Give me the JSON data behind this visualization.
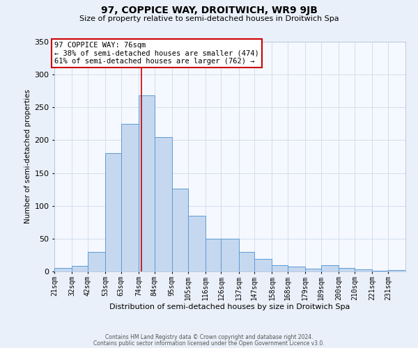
{
  "title": "97, COPPICE WAY, DROITWICH, WR9 9JB",
  "subtitle": "Size of property relative to semi-detached houses in Droitwich Spa",
  "xlabel": "Distribution of semi-detached houses by size in Droitwich Spa",
  "ylabel": "Number of semi-detached properties",
  "bin_labels": [
    "21sqm",
    "32sqm",
    "42sqm",
    "53sqm",
    "63sqm",
    "74sqm",
    "84sqm",
    "95sqm",
    "105sqm",
    "116sqm",
    "126sqm",
    "137sqm",
    "147sqm",
    "158sqm",
    "168sqm",
    "179sqm",
    "189sqm",
    "200sqm",
    "210sqm",
    "221sqm",
    "231sqm"
  ],
  "bin_values": [
    5,
    8,
    30,
    180,
    225,
    268,
    205,
    126,
    85,
    50,
    50,
    30,
    19,
    10,
    7,
    4,
    10,
    5,
    3,
    1,
    2
  ],
  "bar_color": "#c5d8f0",
  "bar_edge_color": "#5b9bd5",
  "property_line_x": 76,
  "bin_edges": [
    21,
    32,
    42,
    53,
    63,
    74,
    84,
    95,
    105,
    116,
    126,
    137,
    147,
    158,
    168,
    179,
    189,
    200,
    210,
    221,
    231,
    242
  ],
  "annotation_title": "97 COPPICE WAY: 76sqm",
  "annotation_line1": "← 38% of semi-detached houses are smaller (474)",
  "annotation_line2": "61% of semi-detached houses are larger (762) →",
  "annotation_box_color": "#ffffff",
  "annotation_box_edge": "#cc0000",
  "vline_color": "#cc0000",
  "ylim": [
    0,
    350
  ],
  "yticks": [
    0,
    50,
    100,
    150,
    200,
    250,
    300,
    350
  ],
  "footer1": "Contains HM Land Registry data © Crown copyright and database right 2024.",
  "footer2": "Contains public sector information licensed under the Open Government Licence v3.0.",
  "bg_color": "#eaf0f9",
  "plot_bg_color": "#f5f8fe"
}
